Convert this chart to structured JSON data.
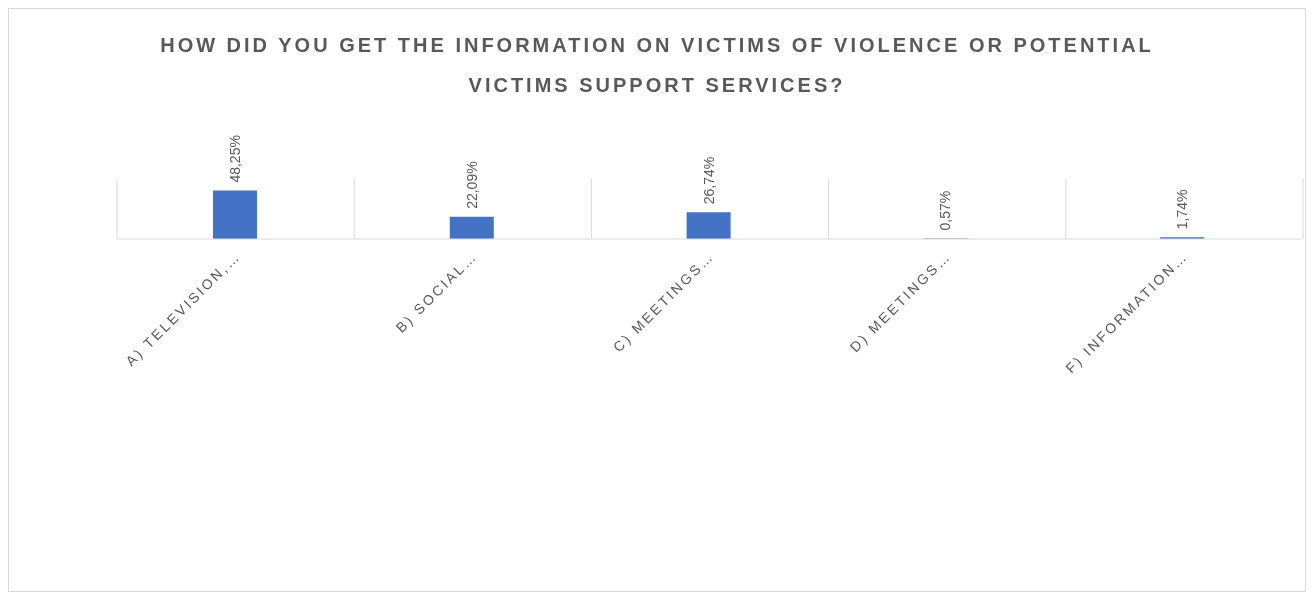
{
  "chart_data": {
    "type": "bar",
    "title": "HOW DID YOU GET THE INFORMATION ON VICTIMS OF VIOLENCE OR POTENTIAL VICTIMS SUPPORT SERVICES?",
    "categories": [
      "A) TELEVISION,…",
      "B) SOCIAL…",
      "C) MEETINGS…",
      "D) MEETINGS…",
      "F) INFORMATION…"
    ],
    "values": [
      48.25,
      22.09,
      26.74,
      0.57,
      1.74
    ],
    "value_labels": [
      "48,25%",
      "22,09%",
      "26,74%",
      "0,57%",
      "1,74%"
    ],
    "color": "#4472c4",
    "grid": "x",
    "legend": false
  }
}
